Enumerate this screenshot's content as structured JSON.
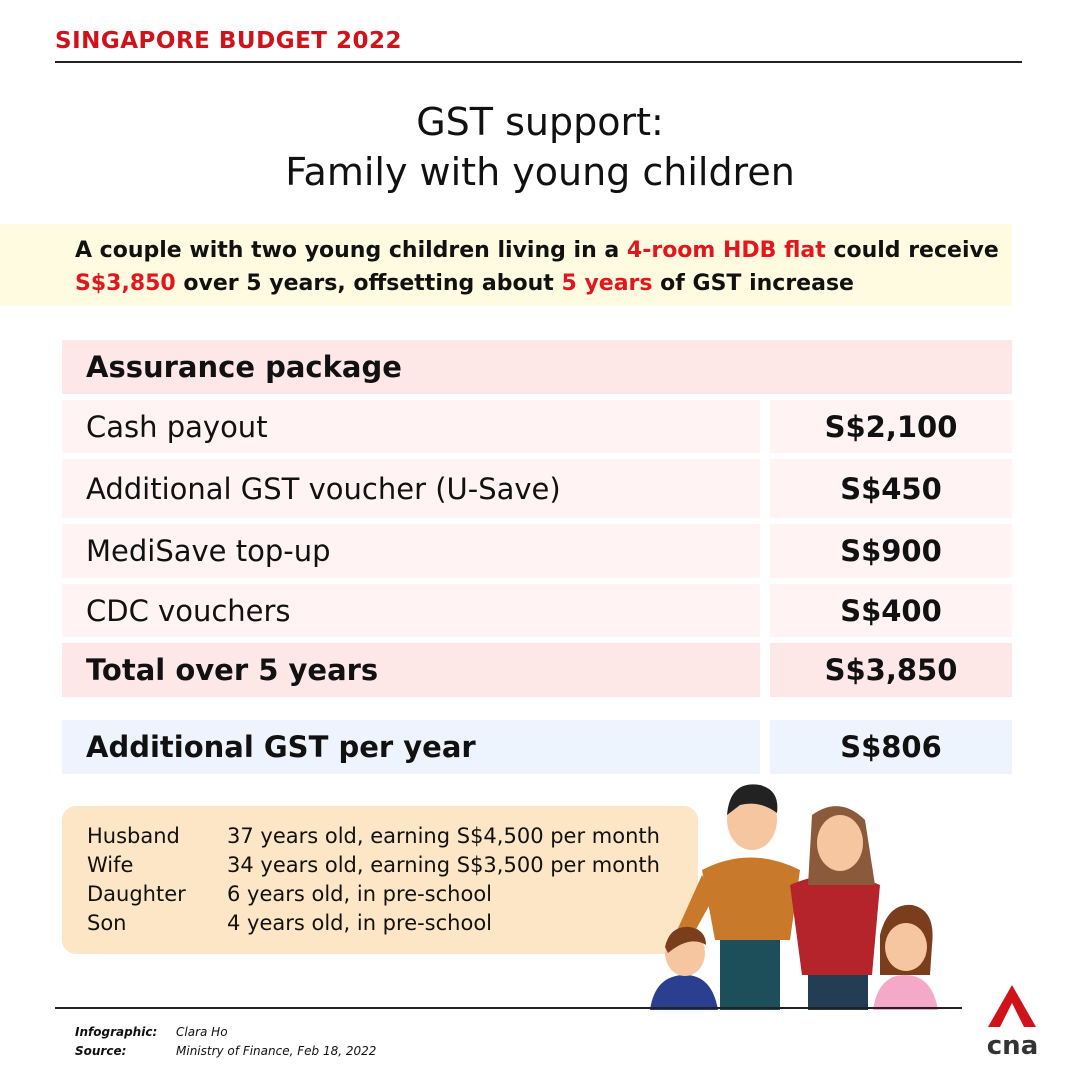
{
  "header": {
    "kicker": "SINGAPORE BUDGET 2022",
    "title_line1": "GST support:",
    "title_line2": "Family with young children"
  },
  "summary": {
    "p1": "A couple with two young children living in a ",
    "h1": "4-room HDB flat",
    "p2": " could receive",
    "h2": "S$3,850",
    "p3": " over 5 years, offsetting about ",
    "h3": "5 years",
    "p4": " of GST increase"
  },
  "table": {
    "heading": "Assurance package",
    "rows": [
      {
        "label": "Cash payout",
        "value": "S$2,100"
      },
      {
        "label": "Additional GST voucher (U-Save)",
        "value": "S$450"
      },
      {
        "label": "MediSave top-up",
        "value": "S$900"
      },
      {
        "label": "CDC vouchers",
        "value": "S$400"
      }
    ],
    "total": {
      "label": "Total over 5 years",
      "value": "S$3,850"
    },
    "gst": {
      "label": "Additional GST per year",
      "value": "S$806"
    }
  },
  "family": [
    {
      "member": "Husband",
      "detail": "37 years old, earning S$4,500 per month"
    },
    {
      "member": "Wife",
      "detail": "34 years old, earning S$3,500 per month"
    },
    {
      "member": "Daughter",
      "detail": "6 years old, in pre-school"
    },
    {
      "member": "Son",
      "detail": "4 years old, in pre-school"
    }
  ],
  "footer": {
    "infographic_label": "Infographic:",
    "infographic_value": "Clara Ho",
    "source_label": "Source:",
    "source_value": "Ministry of Finance, Feb 18, 2022"
  },
  "logo": {
    "text": "cna"
  },
  "colors": {
    "accent": "#d0121b",
    "highlight": "#e2161c",
    "summary_bg": "#fffbe0",
    "table_header_bg": "#fde7e7",
    "table_row_bg": "#fff3f3",
    "gst_bg": "#eef4fd",
    "family_bg": "#fde6c6"
  }
}
